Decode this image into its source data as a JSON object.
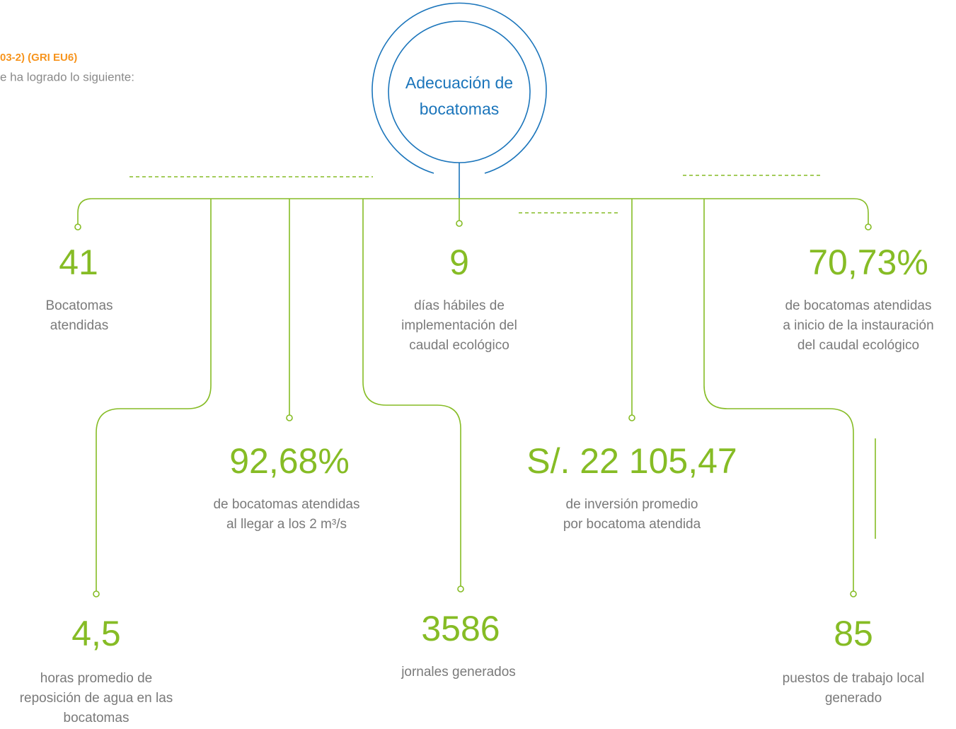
{
  "header": {
    "code": "03-2) (GRI EU6)",
    "intro": "e ha logrado lo siguiente:"
  },
  "title": [
    "Adecuación de",
    "bocatomas"
  ],
  "nodes": [
    {
      "value": "41",
      "description": [
        "Bocatomas",
        "atendidas"
      ]
    },
    {
      "value": "9",
      "description": [
        "días hábiles de",
        "implementación del",
        "caudal ecológico"
      ]
    },
    {
      "value": "70,73%",
      "description": [
        "de bocatomas atendidas",
        "a inicio de la instauración",
        "del caudal ecológico"
      ]
    },
    {
      "value": "92,68%",
      "description": [
        "de bocatomas atendidas",
        "al llegar a los 2 m³/s"
      ]
    },
    {
      "value": "S/. 22 105,47",
      "description": [
        "de inversión promedio",
        "por bocatoma atendida"
      ]
    },
    {
      "value": "4,5",
      "description": [
        "horas promedio de",
        "reposición de agua en las",
        "bocatomas"
      ]
    },
    {
      "value": "3586",
      "description": [
        "jornales generados"
      ]
    },
    {
      "value": "85",
      "description": [
        "puestos de trabajo local",
        "generado"
      ]
    }
  ]
}
